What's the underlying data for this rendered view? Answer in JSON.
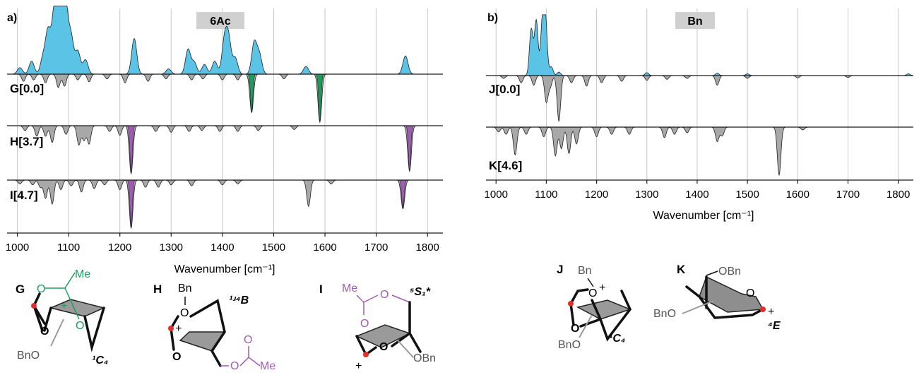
{
  "colors": {
    "positive_fill": "#5bc4e6",
    "negative_fill": "#a8a8a8",
    "green": "#1a9e5b",
    "purple": "#a05cb4",
    "grid": "#c8c8c8",
    "title_box": "#d0d0d0",
    "atom_red": "#e0302a"
  },
  "chart_data": [
    {
      "panel": "a)",
      "type": "line",
      "title": "6Ac",
      "xlabel": "Wavenumber [cm⁻¹]",
      "xlim": [
        980,
        1830
      ],
      "xticks": [
        1000,
        1100,
        1200,
        1300,
        1400,
        1500,
        1600,
        1700,
        1800
      ],
      "grid": true,
      "experiment_peaks": [
        [
          1005,
          0.1
        ],
        [
          1028,
          0.2
        ],
        [
          1050,
          0.25
        ],
        [
          1060,
          0.65
        ],
        [
          1072,
          0.9
        ],
        [
          1080,
          0.62
        ],
        [
          1088,
          1.0
        ],
        [
          1095,
          0.78
        ],
        [
          1105,
          0.55
        ],
        [
          1118,
          0.35
        ],
        [
          1133,
          0.22
        ],
        [
          1228,
          0.55
        ],
        [
          1295,
          0.08
        ],
        [
          1333,
          0.38
        ],
        [
          1345,
          0.18
        ],
        [
          1365,
          0.15
        ],
        [
          1385,
          0.2
        ],
        [
          1404,
          0.5
        ],
        [
          1412,
          0.52
        ],
        [
          1425,
          0.25
        ],
        [
          1462,
          0.48
        ],
        [
          1472,
          0.3
        ],
        [
          1563,
          0.12
        ],
        [
          1757,
          0.28
        ]
      ],
      "traces": [
        {
          "label": "G[0.0]",
          "highlight_color": "green",
          "peaks": [
            [
              1012,
              0.15,
              0
            ],
            [
              1032,
              0.12,
              0
            ],
            [
              1055,
              0.18,
              0
            ],
            [
              1080,
              0.28,
              0
            ],
            [
              1092,
              0.25,
              0
            ],
            [
              1118,
              0.12,
              0
            ],
            [
              1140,
              0.16,
              0
            ],
            [
              1175,
              0.1,
              0
            ],
            [
              1210,
              0.18,
              0
            ],
            [
              1255,
              0.15,
              0
            ],
            [
              1290,
              0.1,
              0
            ],
            [
              1340,
              0.12,
              0
            ],
            [
              1362,
              0.1,
              0
            ],
            [
              1400,
              0.12,
              0
            ],
            [
              1430,
              0.12,
              0
            ],
            [
              1457,
              0.8,
              1
            ],
            [
              1520,
              0.1,
              0
            ],
            [
              1590,
              1.0,
              1
            ]
          ]
        },
        {
          "label": "H[3.7]",
          "highlight_color": "purple",
          "peaks": [
            [
              1015,
              0.1,
              0
            ],
            [
              1038,
              0.22,
              0
            ],
            [
              1055,
              0.22,
              0
            ],
            [
              1068,
              0.35,
              0
            ],
            [
              1095,
              0.18,
              0
            ],
            [
              1120,
              0.4,
              0
            ],
            [
              1130,
              0.3,
              0
            ],
            [
              1140,
              0.38,
              0
            ],
            [
              1180,
              0.12,
              0
            ],
            [
              1200,
              0.2,
              0
            ],
            [
              1222,
              1.0,
              1
            ],
            [
              1270,
              0.12,
              0
            ],
            [
              1300,
              0.14,
              0
            ],
            [
              1335,
              0.12,
              0
            ],
            [
              1360,
              0.1,
              0
            ],
            [
              1395,
              0.12,
              0
            ],
            [
              1430,
              0.12,
              0
            ],
            [
              1470,
              0.1,
              0
            ],
            [
              1540,
              0.08,
              0
            ],
            [
              1765,
              0.95,
              1
            ]
          ]
        },
        {
          "label": "I[4.7]",
          "highlight_color": "purple",
          "peaks": [
            [
              1005,
              0.08,
              0
            ],
            [
              1030,
              0.1,
              0
            ],
            [
              1045,
              0.15,
              0
            ],
            [
              1055,
              0.38,
              0
            ],
            [
              1068,
              0.5,
              0
            ],
            [
              1085,
              0.2,
              0
            ],
            [
              1105,
              0.12,
              0
            ],
            [
              1125,
              0.25,
              0
            ],
            [
              1150,
              0.18,
              0
            ],
            [
              1170,
              0.1,
              0
            ],
            [
              1200,
              0.2,
              0
            ],
            [
              1222,
              1.0,
              1
            ],
            [
              1250,
              0.15,
              0
            ],
            [
              1275,
              0.15,
              0
            ],
            [
              1300,
              0.1,
              0
            ],
            [
              1340,
              0.12,
              0
            ],
            [
              1400,
              0.1,
              0
            ],
            [
              1430,
              0.08,
              0
            ],
            [
              1568,
              0.55,
              0
            ],
            [
              1612,
              0.08,
              0
            ],
            [
              1752,
              0.6,
              1
            ]
          ]
        }
      ]
    },
    {
      "panel": "b)",
      "type": "line",
      "title": "Bn",
      "xlabel": "Wavenumber [cm⁻¹]",
      "xlim": [
        980,
        1830
      ],
      "xticks": [
        1000,
        1100,
        1200,
        1300,
        1400,
        1500,
        1600,
        1700,
        1800
      ],
      "grid": true,
      "experiment_peaks": [
        [
          1070,
          0.8
        ],
        [
          1080,
          0.95
        ],
        [
          1092,
          0.85
        ],
        [
          1098,
          1.0
        ],
        [
          1110,
          0.15
        ],
        [
          1125,
          0.06
        ],
        [
          1300,
          0.05
        ],
        [
          1440,
          0.04
        ],
        [
          1500,
          0.03
        ],
        [
          1820,
          0.03
        ]
      ],
      "traces": [
        {
          "label": "J[0.0]",
          "highlight_color": "none",
          "peaks": [
            [
              1015,
              0.06,
              0
            ],
            [
              1050,
              0.15,
              0
            ],
            [
              1075,
              0.2,
              0
            ],
            [
              1100,
              0.55,
              0
            ],
            [
              1108,
              0.22,
              0
            ],
            [
              1125,
              0.95,
              0
            ],
            [
              1150,
              0.15,
              0
            ],
            [
              1180,
              0.22,
              0
            ],
            [
              1210,
              0.15,
              0
            ],
            [
              1250,
              0.12,
              0
            ],
            [
              1300,
              0.1,
              0
            ],
            [
              1340,
              0.08,
              0
            ],
            [
              1380,
              0.06,
              0
            ],
            [
              1440,
              0.2,
              0
            ],
            [
              1500,
              0.06,
              0
            ],
            [
              1600,
              0.05,
              0
            ],
            [
              1700,
              0.04,
              0
            ]
          ]
        },
        {
          "label": "K[4.6]",
          "highlight_color": "none",
          "peaks": [
            [
              1005,
              0.1,
              0
            ],
            [
              1020,
              0.15,
              0
            ],
            [
              1038,
              0.58,
              0
            ],
            [
              1060,
              0.15,
              0
            ],
            [
              1095,
              0.2,
              0
            ],
            [
              1118,
              0.6,
              0
            ],
            [
              1130,
              0.45,
              0
            ],
            [
              1145,
              0.55,
              0
            ],
            [
              1160,
              0.35,
              0
            ],
            [
              1200,
              0.2,
              0
            ],
            [
              1230,
              0.15,
              0
            ],
            [
              1265,
              0.15,
              0
            ],
            [
              1335,
              0.22,
              0
            ],
            [
              1355,
              0.15,
              0
            ],
            [
              1380,
              0.12,
              0
            ],
            [
              1440,
              0.3,
              0
            ],
            [
              1450,
              0.18,
              0
            ],
            [
              1563,
              1.0,
              0
            ],
            [
              1610,
              0.06,
              0
            ]
          ]
        }
      ]
    }
  ],
  "molecules": {
    "G": {
      "label": "G",
      "me": "Me",
      "o1": "O",
      "o2": "O",
      "plus": "+",
      "o_ring": "O",
      "bno": "BnO",
      "conf": "¹C₄"
    },
    "H": {
      "label": "H",
      "bn": "Bn",
      "o_top": "O",
      "plus": "+",
      "o_ring": "O",
      "conf": "¹ʴ⁴B",
      "o_ac": "O",
      "o_carbonyl": "O",
      "me": "Me"
    },
    "I": {
      "label": "I",
      "me": "Me",
      "o_ester": "O",
      "o_carbonyl": "O",
      "conf": "⁵S₁*",
      "o_ring": "O",
      "obn": "OBn",
      "plus": "+"
    },
    "J": {
      "label": "J",
      "bn": "Bn",
      "o_top": "O",
      "plus": "+",
      "o_ring": "O",
      "bno": "BnO",
      "conf": "¹C₄"
    },
    "K": {
      "label": "K",
      "obn": "OBn",
      "o_ring": "O",
      "plus": "+",
      "bno": "BnO",
      "conf": "⁴E"
    }
  }
}
